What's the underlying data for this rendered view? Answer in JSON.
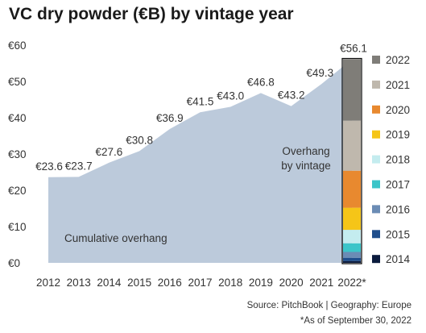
{
  "chart_data": {
    "type": "area",
    "title": "VC dry powder (€B) by vintage year",
    "x": [
      "2012",
      "2013",
      "2014",
      "2015",
      "2016",
      "2017",
      "2018",
      "2019",
      "2020",
      "2021",
      "2022*"
    ],
    "values": [
      23.6,
      23.7,
      27.6,
      30.8,
      36.9,
      41.5,
      43.0,
      46.8,
      43.2,
      49.3,
      56.1
    ],
    "data_labels": [
      "€23.6",
      "€23.7",
      "€27.6",
      "€30.8",
      "€36.9",
      "€41.5",
      "€43.0",
      "€46.8",
      "€43.2",
      "€49.3",
      "€56.1"
    ],
    "ylim": [
      0,
      60
    ],
    "y_ticks": [
      0,
      10,
      20,
      30,
      40,
      50,
      60
    ],
    "y_tick_labels": [
      "€0",
      "€10",
      "€20",
      "€30",
      "€40",
      "€50",
      "€60"
    ],
    "grid": false,
    "area_label": "Cumulative overhang",
    "area_color": "#bccadb",
    "stacked_bar": {
      "label_line1": "Overhang",
      "label_line2": "by vintage",
      "total": 56.1,
      "segments": [
        {
          "name": "2014",
          "value": 0.5,
          "color": "#0b1b3d"
        },
        {
          "name": "2015",
          "value": 0.9,
          "color": "#1f4e8c"
        },
        {
          "name": "2016",
          "value": 1.6,
          "color": "#6b8cb5"
        },
        {
          "name": "2017",
          "value": 2.4,
          "color": "#3cc5c9"
        },
        {
          "name": "2018",
          "value": 3.7,
          "color": "#c4ecef"
        },
        {
          "name": "2019",
          "value": 6.1,
          "color": "#f5c518"
        },
        {
          "name": "2020",
          "value": 10.2,
          "color": "#e8892f"
        },
        {
          "name": "2021",
          "value": 13.8,
          "color": "#bfb8ad"
        },
        {
          "name": "2022",
          "value": 16.9,
          "color": "#7f7d78"
        }
      ]
    },
    "legend": [
      {
        "name": "2022",
        "color": "#7f7d78"
      },
      {
        "name": "2021",
        "color": "#bfb8ad"
      },
      {
        "name": "2020",
        "color": "#e8892f"
      },
      {
        "name": "2019",
        "color": "#f5c518"
      },
      {
        "name": "2018",
        "color": "#c4ecef"
      },
      {
        "name": "2017",
        "color": "#3cc5c9"
      },
      {
        "name": "2016",
        "color": "#6b8cb5"
      },
      {
        "name": "2015",
        "color": "#1f4e8c"
      },
      {
        "name": "2014",
        "color": "#0b1b3d"
      }
    ],
    "legend_position": "right"
  },
  "footer": {
    "source": "Source: PitchBook  |  Geography: Europe",
    "note": "*As of September 30, 2022"
  }
}
